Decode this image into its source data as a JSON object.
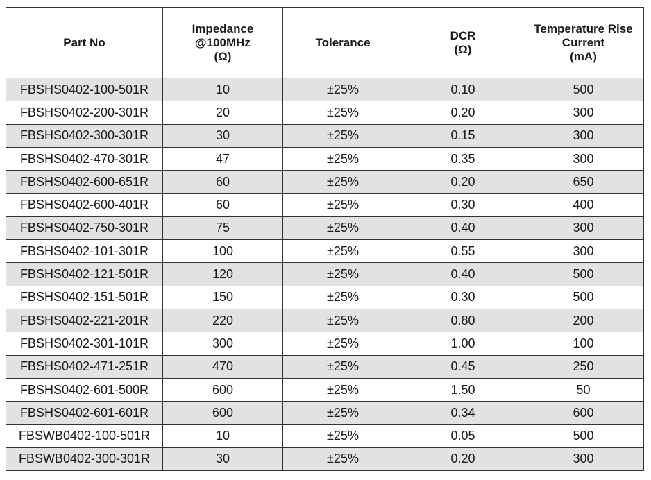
{
  "headers": [
    {
      "lines": [
        "Part No"
      ]
    },
    {
      "lines": [
        "Impedance",
        "@100MHz",
        "(Ω)"
      ]
    },
    {
      "lines": [
        "Tolerance"
      ]
    },
    {
      "lines": [
        "DCR",
        "(Ω)"
      ]
    },
    {
      "lines": [
        "Temperature Rise",
        "Current",
        "(mA)"
      ]
    }
  ],
  "rows": [
    [
      "FBSHS0402-100-501R",
      "10",
      "±25%",
      "0.10",
      "500"
    ],
    [
      "FBSHS0402-200-301R",
      "20",
      "±25%",
      "0.20",
      "300"
    ],
    [
      "FBSHS0402-300-301R",
      "30",
      "±25%",
      "0.15",
      "300"
    ],
    [
      "FBSHS0402-470-301R",
      "47",
      "±25%",
      "0.35",
      "300"
    ],
    [
      "FBSHS0402-600-651R",
      "60",
      "±25%",
      "0.20",
      "650"
    ],
    [
      "FBSHS0402-600-401R",
      "60",
      "±25%",
      "0.30",
      "400"
    ],
    [
      "FBSHS0402-750-301R",
      "75",
      "±25%",
      "0.40",
      "300"
    ],
    [
      "FBSHS0402-101-301R",
      "100",
      "±25%",
      "0.55",
      "300"
    ],
    [
      "FBSHS0402-121-501R",
      "120",
      "±25%",
      "0.40",
      "500"
    ],
    [
      "FBSHS0402-151-501R",
      "150",
      "±25%",
      "0.30",
      "500"
    ],
    [
      "FBSHS0402-221-201R",
      "220",
      "±25%",
      "0.80",
      "200"
    ],
    [
      "FBSHS0402-301-101R",
      "300",
      "±25%",
      "1.00",
      "100"
    ],
    [
      "FBSHS0402-471-251R",
      "470",
      "±25%",
      "0.45",
      "250"
    ],
    [
      "FBSHS0402-601-500R",
      "600",
      "±25%",
      "1.50",
      "50"
    ],
    [
      "FBSHS0402-601-601R",
      "600",
      "±25%",
      "0.34",
      "600"
    ],
    [
      "FBSWB0402-100-501R",
      "10",
      "±25%",
      "0.05",
      "500"
    ],
    [
      "FBSWB0402-300-301R",
      "30",
      "±25%",
      "0.20",
      "300"
    ]
  ],
  "colors": {
    "striped_row": "#e2e2e2",
    "plain_row": "#ffffff",
    "border": "#333333"
  }
}
